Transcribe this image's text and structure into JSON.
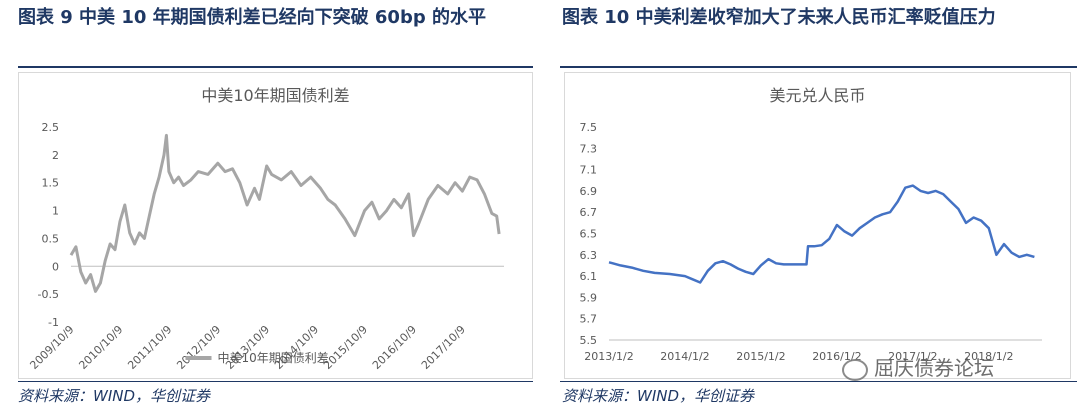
{
  "left": {
    "figure_title": "图表 9 中美 10 年期国债利差已经向下突破 60bp 的水平",
    "source": "资料来源：WIND，华创证券"
  },
  "right": {
    "figure_title": "图表 10 中美利差收窄加大了未来人民币汇率贬值压力",
    "source": "资料来源：WIND，华创证券"
  },
  "watermark": "屈庆债券论坛",
  "chart_data": [
    {
      "type": "line",
      "title": "中美10年期国债利差",
      "xlabel": "",
      "ylabel": "",
      "ylim": [
        -1,
        2.5
      ],
      "yticks": [
        "2.5",
        "2",
        "1.5",
        "1",
        "0.5",
        "0",
        "-0.5",
        "-1"
      ],
      "xticks": [
        "2009/10/9",
        "2010/10/9",
        "2011/10/9",
        "2012/10/9",
        "2013/10/9",
        "2014/10/9",
        "2015/10/9",
        "2016/10/9",
        "2017/10/9"
      ],
      "grid": false,
      "legend": "bottom",
      "color": "#a6a6a6",
      "series": [
        {
          "name": "中美10年期国债利差",
          "x": [
            2009.7,
            2009.8,
            2009.9,
            2010.0,
            2010.1,
            2010.2,
            2010.3,
            2010.4,
            2010.5,
            2010.6,
            2010.7,
            2010.8,
            2010.9,
            2011.0,
            2011.1,
            2011.2,
            2011.3,
            2011.4,
            2011.5,
            2011.6,
            2011.65,
            2011.7,
            2011.8,
            2011.9,
            2012.0,
            2012.15,
            2012.3,
            2012.5,
            2012.7,
            2012.85,
            2013.0,
            2013.15,
            2013.3,
            2013.45,
            2013.55,
            2013.7,
            2013.8,
            2014.0,
            2014.2,
            2014.4,
            2014.6,
            2014.8,
            2014.95,
            2015.1,
            2015.3,
            2015.5,
            2015.7,
            2015.85,
            2016.0,
            2016.15,
            2016.3,
            2016.45,
            2016.6,
            2016.7,
            2016.8,
            2017.0,
            2017.2,
            2017.4,
            2017.55,
            2017.7,
            2017.85,
            2018.0,
            2018.15,
            2018.3,
            2018.4,
            2018.45
          ],
          "values": [
            0.2,
            0.35,
            -0.1,
            -0.3,
            -0.15,
            -0.45,
            -0.3,
            0.1,
            0.4,
            0.3,
            0.8,
            1.1,
            0.6,
            0.4,
            0.6,
            0.5,
            0.9,
            1.3,
            1.6,
            2.0,
            2.35,
            1.7,
            1.5,
            1.6,
            1.45,
            1.55,
            1.7,
            1.65,
            1.85,
            1.7,
            1.75,
            1.5,
            1.1,
            1.4,
            1.2,
            1.8,
            1.65,
            1.55,
            1.7,
            1.45,
            1.6,
            1.4,
            1.2,
            1.1,
            0.85,
            0.55,
            1.0,
            1.15,
            0.85,
            1.0,
            1.2,
            1.05,
            1.3,
            0.55,
            0.75,
            1.2,
            1.45,
            1.3,
            1.5,
            1.35,
            1.6,
            1.55,
            1.3,
            0.95,
            0.9,
            0.58
          ]
        }
      ]
    },
    {
      "type": "line",
      "title": "美元兑人民币",
      "xlabel": "",
      "ylabel": "",
      "ylim": [
        5.5,
        7.5
      ],
      "yticks": [
        "7.5",
        "7.3",
        "7.1",
        "6.9",
        "6.7",
        "6.5",
        "6.3",
        "6.1",
        "5.9",
        "5.7",
        "5.5"
      ],
      "xticks": [
        "2013/1/2",
        "2014/1/2",
        "2015/1/2",
        "2016/1/2",
        "2017/1/2",
        "2018/1/2"
      ],
      "grid": false,
      "legend": "none",
      "color": "#4472c4",
      "series": [
        {
          "name": "",
          "x": [
            2013.0,
            2013.05,
            2013.15,
            2013.3,
            2013.45,
            2013.6,
            2013.8,
            2014.0,
            2014.1,
            2014.2,
            2014.3,
            2014.4,
            2014.5,
            2014.6,
            2014.7,
            2014.8,
            2014.9,
            2015.0,
            2015.1,
            2015.2,
            2015.3,
            2015.4,
            2015.5,
            2015.6,
            2015.62,
            2015.7,
            2015.8,
            2015.9,
            2016.0,
            2016.05,
            2016.1,
            2016.2,
            2016.3,
            2016.4,
            2016.5,
            2016.6,
            2016.7,
            2016.8,
            2016.9,
            2017.0,
            2017.1,
            2017.2,
            2017.3,
            2017.4,
            2017.5,
            2017.6,
            2017.7,
            2017.8,
            2017.9,
            2018.0,
            2018.1,
            2018.2,
            2018.3,
            2018.4,
            2018.5,
            2018.6
          ],
          "values": [
            6.23,
            6.22,
            6.2,
            6.18,
            6.15,
            6.13,
            6.12,
            6.1,
            6.07,
            6.04,
            6.15,
            6.22,
            6.24,
            6.21,
            6.17,
            6.14,
            6.12,
            6.2,
            6.26,
            6.22,
            6.21,
            6.21,
            6.21,
            6.21,
            6.38,
            6.38,
            6.39,
            6.45,
            6.58,
            6.55,
            6.52,
            6.48,
            6.55,
            6.6,
            6.65,
            6.68,
            6.7,
            6.8,
            6.93,
            6.95,
            6.9,
            6.88,
            6.9,
            6.87,
            6.8,
            6.73,
            6.6,
            6.65,
            6.62,
            6.55,
            6.3,
            6.4,
            6.32,
            6.28,
            6.3,
            6.28
          ]
        }
      ]
    }
  ]
}
